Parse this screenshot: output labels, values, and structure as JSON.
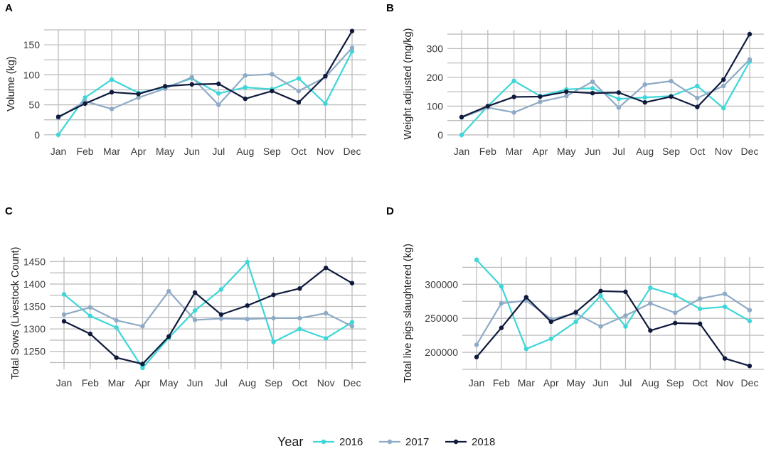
{
  "legend": {
    "title": "Year",
    "entries": [
      {
        "label": "2016",
        "color": "#3ed6d8"
      },
      {
        "label": "2017",
        "color": "#8faac6"
      },
      {
        "label": "2018",
        "color": "#0f1a3c"
      }
    ]
  },
  "chart_data": [
    {
      "panel": "A",
      "type": "line",
      "ylabel": "Volume (kg)",
      "xlabel": "",
      "categories": [
        "Jan",
        "Feb",
        "Mar",
        "Apr",
        "May",
        "Jun",
        "Jul",
        "Aug",
        "Sep",
        "Oct",
        "Nov",
        "Dec"
      ],
      "ylim": [
        -5,
        175
      ],
      "yticks": [
        0,
        50,
        100,
        150
      ],
      "ytick_labels": [
        "0",
        "50",
        "100",
        "150"
      ],
      "series": [
        {
          "name": "2016",
          "values": [
            0,
            62,
            92,
            70,
            79,
            94,
            69,
            79,
            76,
            94,
            52,
            139
          ]
        },
        {
          "name": "2017",
          "values": [
            28,
            56,
            43,
            62,
            77,
            96,
            50,
            99,
            101,
            73,
            96,
            145
          ]
        },
        {
          "name": "2018",
          "values": [
            30,
            52,
            71,
            68,
            81,
            84,
            85,
            60,
            73,
            54,
            98,
            173
          ]
        }
      ]
    },
    {
      "panel": "B",
      "type": "line",
      "ylabel": "Weight adjusted (mg/kg)",
      "xlabel": "",
      "categories": [
        "Jan",
        "Feb",
        "Mar",
        "Apr",
        "May",
        "Jun",
        "Jul",
        "Aug",
        "Sep",
        "Oct",
        "Nov",
        "Dec"
      ],
      "ylim": [
        -10,
        365
      ],
      "yticks": [
        0,
        100,
        200,
        300
      ],
      "ytick_labels": [
        "0",
        "100",
        "200",
        "300"
      ],
      "series": [
        {
          "name": "2016",
          "values": [
            0,
            100,
            188,
            135,
            158,
            162,
            125,
            130,
            135,
            170,
            93,
            255
          ]
        },
        {
          "name": "2017",
          "values": [
            60,
            95,
            78,
            115,
            135,
            185,
            95,
            175,
            187,
            128,
            170,
            262
          ]
        },
        {
          "name": "2018",
          "values": [
            62,
            100,
            132,
            133,
            150,
            145,
            147,
            113,
            133,
            97,
            192,
            350
          ]
        }
      ]
    },
    {
      "panel": "C",
      "type": "line",
      "ylabel": "Total Sows (Livestock Count)",
      "xlabel": "",
      "categories": [
        "Jan",
        "Feb",
        "Mar",
        "Apr",
        "May",
        "Jun",
        "Jul",
        "Aug",
        "Sep",
        "Oct",
        "Nov",
        "Dec"
      ],
      "ylim": [
        1210,
        1460
      ],
      "yticks": [
        1250,
        1300,
        1350,
        1400,
        1450
      ],
      "ytick_labels": [
        "1250",
        "1300",
        "1350",
        "1400",
        "1450"
      ],
      "series": [
        {
          "name": "2016",
          "values": [
            1377,
            1329,
            1303,
            1213,
            1280,
            1341,
            1388,
            1449,
            1271,
            1300,
            1279,
            1315
          ]
        },
        {
          "name": "2017",
          "values": [
            1332,
            1348,
            1319,
            1306,
            1384,
            1320,
            1323,
            1322,
            1324,
            1324,
            1335,
            1306
          ]
        },
        {
          "name": "2018",
          "values": [
            1317,
            1289,
            1236,
            1222,
            1283,
            1381,
            1332,
            1352,
            1376,
            1390,
            1436,
            1402
          ]
        }
      ]
    },
    {
      "panel": "D",
      "type": "line",
      "ylabel": "Total live pigs slaughtered (kg)",
      "xlabel": "",
      "categories": [
        "Jan",
        "Feb",
        "Mar",
        "Apr",
        "May",
        "Jun",
        "Jul",
        "Aug",
        "Sep",
        "Oct",
        "Nov",
        "Dec"
      ],
      "ylim": [
        175000,
        340000
      ],
      "yticks": [
        200000,
        250000,
        300000
      ],
      "ytick_labels": [
        "200000",
        "250000",
        "300000"
      ],
      "series": [
        {
          "name": "2016",
          "values": [
            336000,
            297000,
            205000,
            220000,
            245000,
            283000,
            238000,
            295000,
            284000,
            264000,
            267000,
            246000
          ]
        },
        {
          "name": "2017",
          "values": [
            211000,
            272000,
            276000,
            249000,
            257000,
            238000,
            254000,
            272000,
            258000,
            279000,
            286000,
            262000
          ]
        },
        {
          "name": "2018",
          "values": [
            193000,
            236000,
            281000,
            245000,
            259000,
            290000,
            289000,
            232000,
            243000,
            242000,
            191000,
            180000
          ]
        }
      ]
    }
  ]
}
